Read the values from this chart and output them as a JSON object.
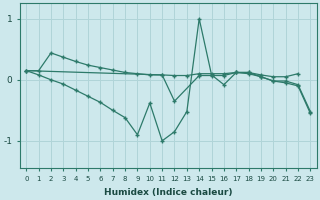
{
  "xlabel": "Humidex (Indice chaleur)",
  "bg_color": "#cde8ec",
  "grid_color": "#b0d4d8",
  "line_color": "#2d7a6a",
  "x_ticks": [
    0,
    1,
    2,
    3,
    4,
    5,
    6,
    7,
    8,
    9,
    10,
    11,
    12,
    13,
    14,
    15,
    16,
    17,
    18,
    19,
    20,
    21,
    22,
    23
  ],
  "ylim": [
    -1.45,
    1.25
  ],
  "yticks": [
    -1,
    0,
    1
  ],
  "series1_x": [
    0,
    1,
    2,
    3,
    4,
    5,
    6,
    7,
    8,
    9,
    10,
    11,
    12,
    13,
    14,
    15,
    16,
    17,
    18,
    19,
    20,
    21,
    22
  ],
  "series1_y": [
    0.15,
    0.15,
    0.44,
    0.37,
    0.3,
    0.24,
    0.2,
    0.16,
    0.12,
    0.1,
    0.08,
    0.08,
    0.07,
    0.07,
    0.1,
    0.1,
    0.1,
    0.12,
    0.12,
    0.08,
    0.05,
    0.05,
    0.1
  ],
  "series2_x": [
    0,
    1,
    2,
    3,
    4,
    5,
    6,
    7,
    8,
    9,
    10,
    11,
    12,
    13,
    14,
    15,
    16,
    17,
    18,
    19,
    20,
    21,
    22,
    23
  ],
  "series2_y": [
    0.15,
    0.08,
    0.0,
    -0.07,
    -0.17,
    -0.27,
    -0.37,
    -0.5,
    -0.62,
    -0.9,
    -0.38,
    -1.0,
    -0.85,
    -0.52,
    1.0,
    0.08,
    -0.08,
    0.12,
    0.12,
    0.05,
    -0.02,
    -0.05,
    -0.1,
    -0.55
  ],
  "series3_x": [
    0,
    11,
    12,
    14,
    15,
    16,
    17,
    18,
    19,
    20,
    21,
    22,
    23
  ],
  "series3_y": [
    0.15,
    0.08,
    -0.35,
    0.07,
    0.07,
    0.07,
    0.12,
    0.1,
    0.05,
    -0.02,
    -0.02,
    -0.08,
    -0.52
  ]
}
